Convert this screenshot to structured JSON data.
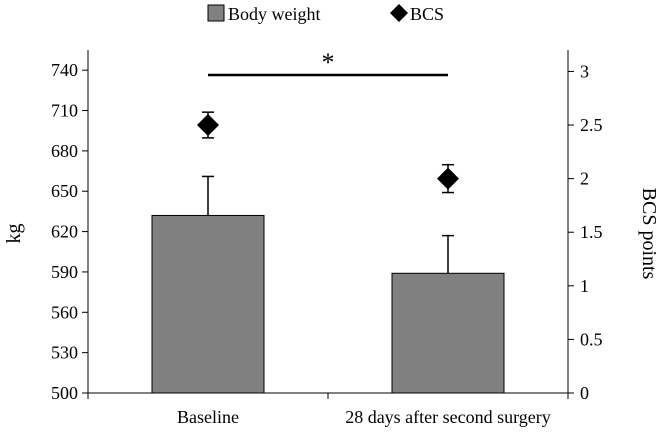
{
  "chart_data": {
    "type": "bar",
    "categories": [
      "Baseline",
      "28 days after second surgery"
    ],
    "legend": {
      "placement": "top-center",
      "items": [
        {
          "label": "Body weight",
          "marker": "square"
        },
        {
          "label": "BCS",
          "marker": "diamond"
        }
      ]
    },
    "significance": {
      "symbol": "*",
      "between": [
        "Baseline",
        "28 days after second surgery"
      ]
    },
    "y_left": {
      "label": "kg",
      "range": [
        500,
        755
      ],
      "ticks": [
        "500",
        "530",
        "560",
        "590",
        "620",
        "650",
        "680",
        "710",
        "740"
      ]
    },
    "y_right": {
      "label": "BCS points",
      "range": [
        0,
        3.2
      ],
      "ticks": [
        "0",
        "0.5",
        "1",
        "1.5",
        "2",
        "2.5",
        "3"
      ]
    },
    "series": [
      {
        "name": "Body weight",
        "kind": "bar",
        "axis": "left",
        "values": [
          632,
          589
        ],
        "error_upper": [
          661,
          617
        ],
        "color": "#808080"
      },
      {
        "name": "BCS",
        "kind": "diamond",
        "axis": "right",
        "values": [
          2.5,
          2.0
        ],
        "error_upper": [
          2.62,
          2.13
        ],
        "error_lower": [
          2.38,
          1.87
        ],
        "color": "#000000"
      }
    ],
    "grid": false
  }
}
